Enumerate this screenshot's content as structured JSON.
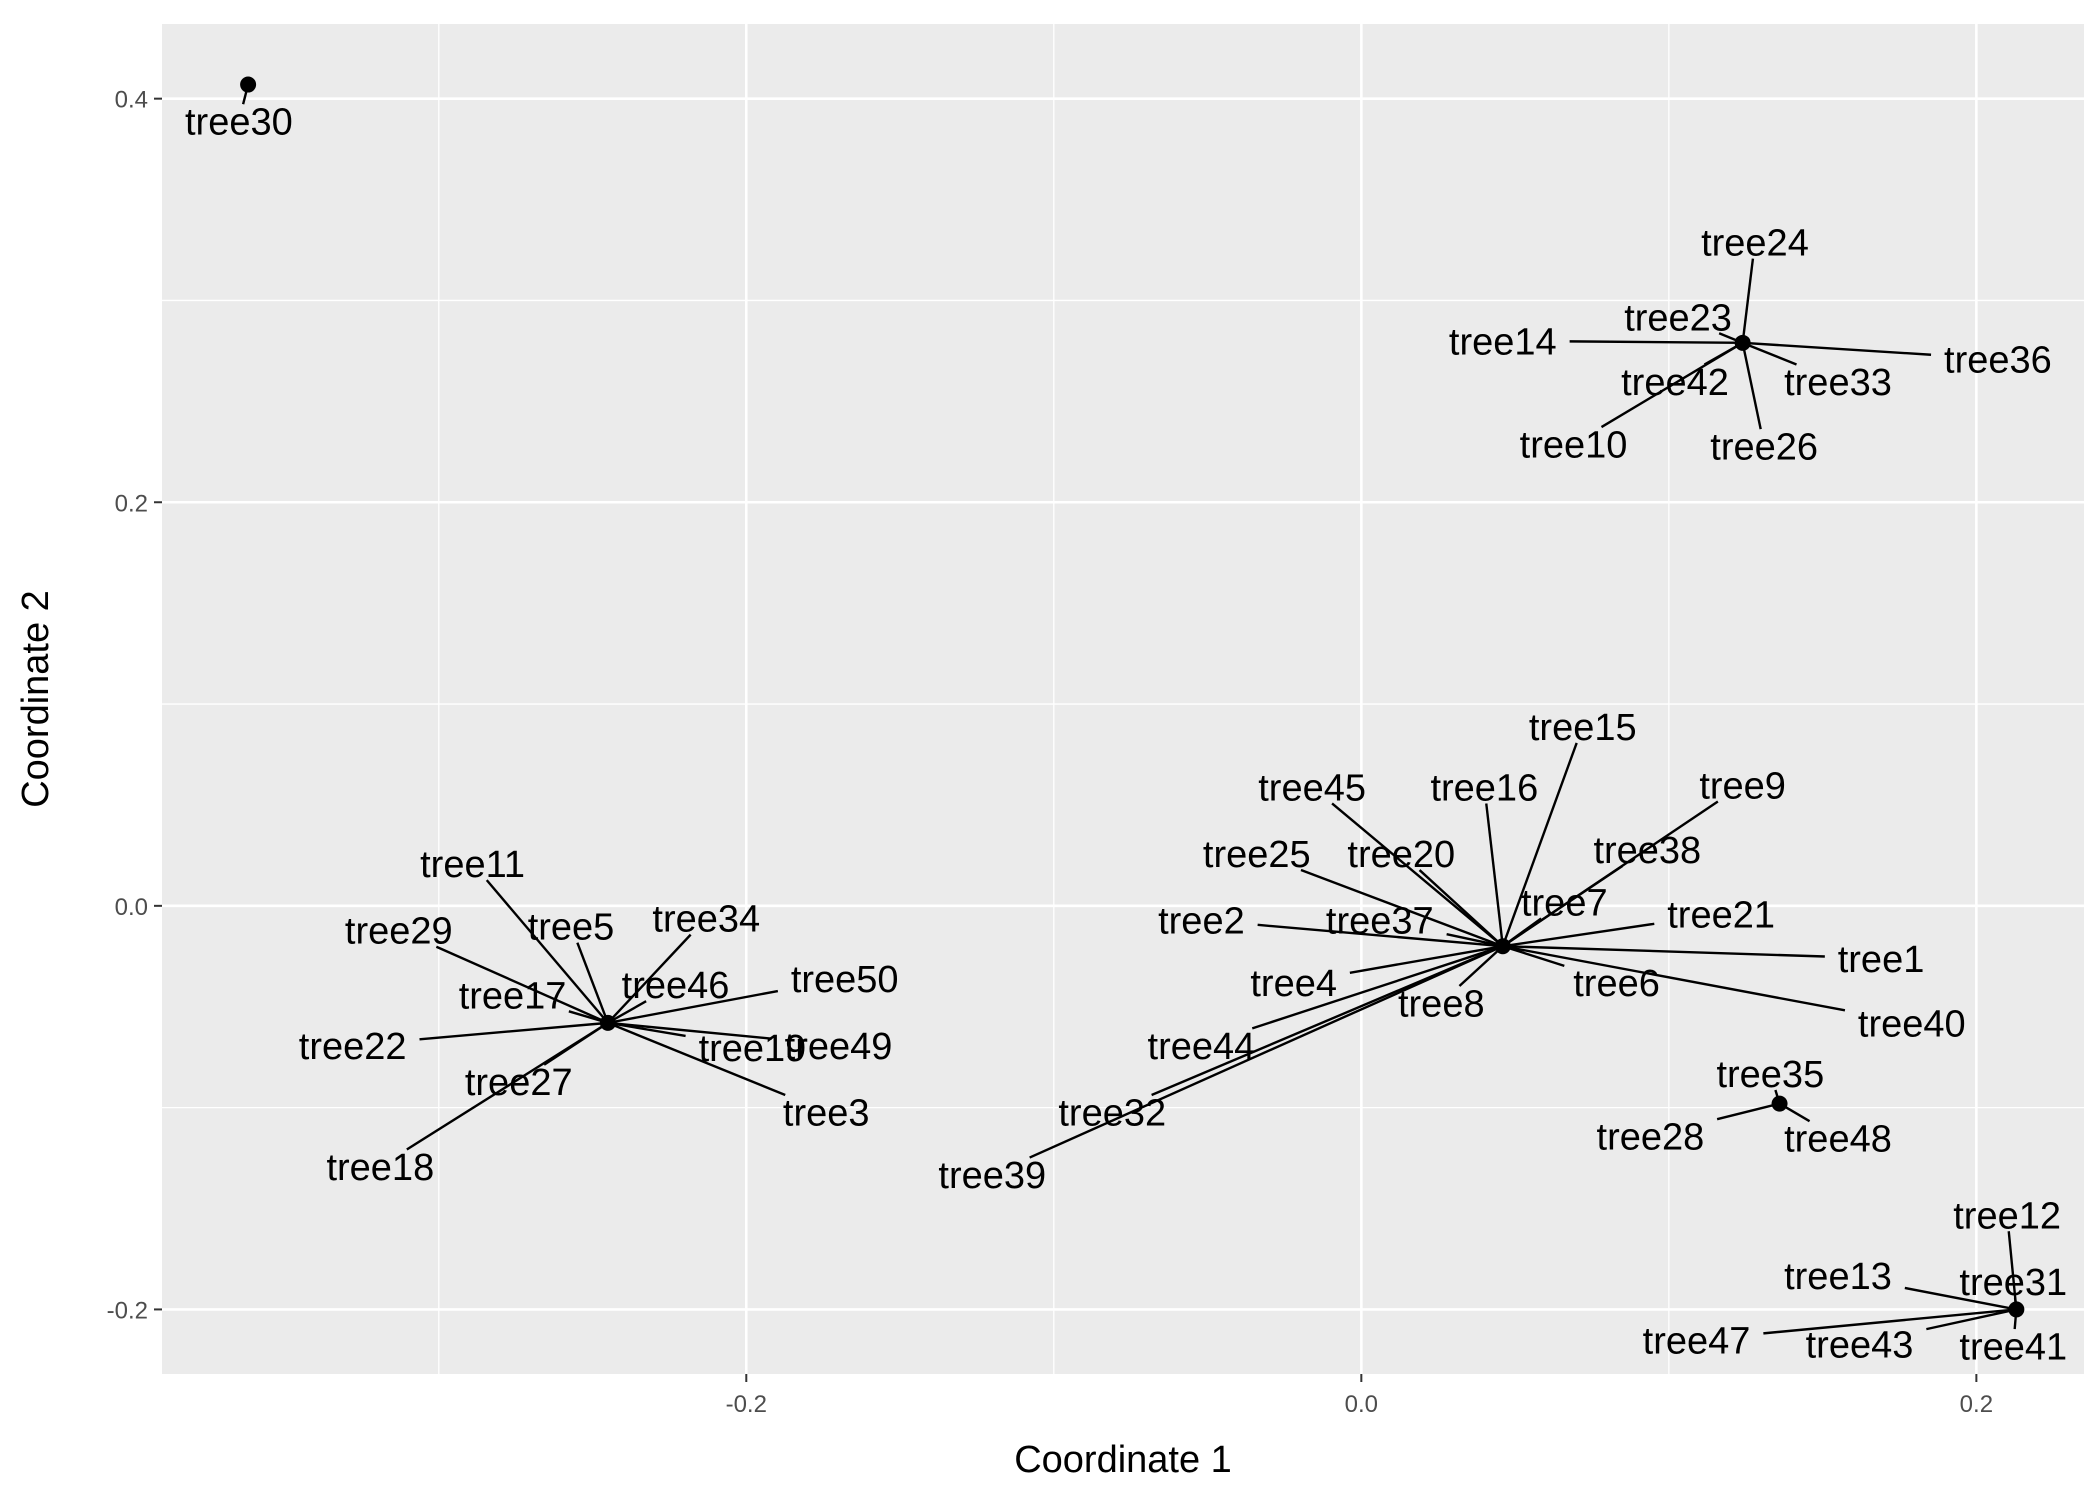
{
  "chart_data": {
    "type": "scatter",
    "title": "",
    "xlabel": "Coordinate 1",
    "ylabel": "Coordinate 2",
    "xlim": [
      -0.39,
      0.235
    ],
    "ylim": [
      -0.232,
      0.437
    ],
    "x_breaks": [
      -0.3,
      -0.2,
      -0.1,
      0.0,
      0.1,
      0.2
    ],
    "x_tick_labels": [
      "-0.2",
      "0.0",
      "0.2"
    ],
    "x_tick_values": [
      -0.2,
      0.0,
      0.2
    ],
    "y_breaks": [
      -0.2,
      -0.1,
      0.0,
      0.1,
      0.2,
      0.3,
      0.4
    ],
    "y_tick_labels": [
      "-0.2",
      "0.0",
      "0.2",
      "0.4"
    ],
    "y_tick_values": [
      -0.2,
      0.0,
      0.2,
      0.4
    ],
    "colors": {
      "panel": "#EBEBEB",
      "grid": "#FFFFFF",
      "point": "#000000",
      "text": "#000000",
      "tick_text": "#4D4D4D"
    },
    "points": [
      {
        "x": -0.362,
        "y": 0.407
      },
      {
        "x": -0.245,
        "y": -0.058
      },
      {
        "x": 0.046,
        "y": -0.02
      },
      {
        "x": 0.124,
        "y": 0.279
      },
      {
        "x": 0.136,
        "y": -0.098
      },
      {
        "x": 0.213,
        "y": -0.2
      }
    ],
    "labels": [
      {
        "text": "tree30",
        "x": -0.362,
        "y": 0.407,
        "lx": -0.365,
        "ly": 0.389
      },
      {
        "text": "tree11",
        "x": -0.245,
        "y": -0.058,
        "lx": -0.289,
        "ly": 0.021
      },
      {
        "text": "tree29",
        "x": -0.245,
        "y": -0.058,
        "lx": -0.313,
        "ly": -0.012
      },
      {
        "text": "tree5",
        "x": -0.245,
        "y": -0.058,
        "lx": -0.257,
        "ly": -0.01
      },
      {
        "text": "tree34",
        "x": -0.245,
        "y": -0.058,
        "lx": -0.213,
        "ly": -0.006
      },
      {
        "text": "tree17",
        "x": -0.245,
        "y": -0.058,
        "lx": -0.276,
        "ly": -0.044
      },
      {
        "text": "tree46",
        "x": -0.245,
        "y": -0.058,
        "lx": -0.223,
        "ly": -0.039
      },
      {
        "text": "tree50",
        "x": -0.245,
        "y": -0.058,
        "lx": -0.168,
        "ly": -0.036
      },
      {
        "text": "tree22",
        "x": -0.245,
        "y": -0.058,
        "lx": -0.328,
        "ly": -0.069
      },
      {
        "text": "tree19",
        "x": -0.245,
        "y": -0.058,
        "lx": -0.198,
        "ly": -0.07
      },
      {
        "text": "tree49",
        "x": -0.245,
        "y": -0.058,
        "lx": -0.17,
        "ly": -0.069
      },
      {
        "text": "tree27",
        "x": -0.245,
        "y": -0.058,
        "lx": -0.274,
        "ly": -0.087
      },
      {
        "text": "tree3",
        "x": -0.245,
        "y": -0.058,
        "lx": -0.174,
        "ly": -0.102
      },
      {
        "text": "tree18",
        "x": -0.245,
        "y": -0.058,
        "lx": -0.319,
        "ly": -0.129
      },
      {
        "text": "tree15",
        "x": 0.046,
        "y": -0.02,
        "lx": 0.072,
        "ly": 0.089
      },
      {
        "text": "tree45",
        "x": 0.046,
        "y": -0.02,
        "lx": -0.016,
        "ly": 0.059
      },
      {
        "text": "tree16",
        "x": 0.046,
        "y": -0.02,
        "lx": 0.04,
        "ly": 0.059
      },
      {
        "text": "tree9",
        "x": 0.046,
        "y": -0.02,
        "lx": 0.124,
        "ly": 0.06
      },
      {
        "text": "tree25",
        "x": 0.046,
        "y": -0.02,
        "lx": -0.034,
        "ly": 0.026
      },
      {
        "text": "tree20",
        "x": 0.046,
        "y": -0.02,
        "lx": 0.013,
        "ly": 0.026
      },
      {
        "text": "tree38",
        "x": 0.046,
        "y": -0.02,
        "lx": 0.093,
        "ly": 0.028
      },
      {
        "text": "tree7",
        "x": 0.046,
        "y": -0.02,
        "lx": 0.066,
        "ly": 0.002
      },
      {
        "text": "tree2",
        "x": 0.046,
        "y": -0.02,
        "lx": -0.052,
        "ly": -0.007
      },
      {
        "text": "tree37",
        "x": 0.046,
        "y": -0.02,
        "lx": 0.006,
        "ly": -0.007
      },
      {
        "text": "tree21",
        "x": 0.046,
        "y": -0.02,
        "lx": 0.117,
        "ly": -0.004
      },
      {
        "text": "tree1",
        "x": 0.046,
        "y": -0.02,
        "lx": 0.169,
        "ly": -0.026
      },
      {
        "text": "tree4",
        "x": 0.046,
        "y": -0.02,
        "lx": -0.022,
        "ly": -0.038
      },
      {
        "text": "tree6",
        "x": 0.046,
        "y": -0.02,
        "lx": 0.083,
        "ly": -0.038
      },
      {
        "text": "tree8",
        "x": 0.046,
        "y": -0.02,
        "lx": 0.026,
        "ly": -0.048
      },
      {
        "text": "tree40",
        "x": 0.046,
        "y": -0.02,
        "lx": 0.179,
        "ly": -0.058
      },
      {
        "text": "tree44",
        "x": 0.046,
        "y": -0.02,
        "lx": -0.052,
        "ly": -0.069
      },
      {
        "text": "tree32",
        "x": 0.046,
        "y": -0.02,
        "lx": -0.081,
        "ly": -0.102
      },
      {
        "text": "tree39",
        "x": 0.046,
        "y": -0.02,
        "lx": -0.12,
        "ly": -0.133
      },
      {
        "text": "tree24",
        "x": 0.124,
        "y": 0.279,
        "lx": 0.128,
        "ly": 0.329
      },
      {
        "text": "tree23",
        "x": 0.124,
        "y": 0.279,
        "lx": 0.103,
        "ly": 0.292
      },
      {
        "text": "tree14",
        "x": 0.124,
        "y": 0.279,
        "lx": 0.046,
        "ly": 0.28
      },
      {
        "text": "tree36",
        "x": 0.124,
        "y": 0.279,
        "lx": 0.207,
        "ly": 0.271
      },
      {
        "text": "tree42",
        "x": 0.124,
        "y": 0.279,
        "lx": 0.102,
        "ly": 0.26
      },
      {
        "text": "tree33",
        "x": 0.124,
        "y": 0.279,
        "lx": 0.155,
        "ly": 0.26
      },
      {
        "text": "tree10",
        "x": 0.124,
        "y": 0.279,
        "lx": 0.069,
        "ly": 0.229
      },
      {
        "text": "tree26",
        "x": 0.124,
        "y": 0.279,
        "lx": 0.131,
        "ly": 0.228
      },
      {
        "text": "tree35",
        "x": 0.136,
        "y": -0.098,
        "lx": 0.133,
        "ly": -0.083
      },
      {
        "text": "tree28",
        "x": 0.136,
        "y": -0.098,
        "lx": 0.094,
        "ly": -0.114
      },
      {
        "text": "tree48",
        "x": 0.136,
        "y": -0.098,
        "lx": 0.155,
        "ly": -0.115
      },
      {
        "text": "tree12",
        "x": 0.213,
        "y": -0.2,
        "lx": 0.21,
        "ly": -0.153
      },
      {
        "text": "tree13",
        "x": 0.213,
        "y": -0.2,
        "lx": 0.155,
        "ly": -0.183
      },
      {
        "text": "tree31",
        "x": 0.213,
        "y": -0.2,
        "lx": 0.212,
        "ly": -0.186
      },
      {
        "text": "tree47",
        "x": 0.213,
        "y": -0.2,
        "lx": 0.109,
        "ly": -0.215
      },
      {
        "text": "tree43",
        "x": 0.213,
        "y": -0.2,
        "lx": 0.162,
        "ly": -0.217
      },
      {
        "text": "tree41",
        "x": 0.213,
        "y": -0.2,
        "lx": 0.212,
        "ly": -0.218
      }
    ]
  }
}
